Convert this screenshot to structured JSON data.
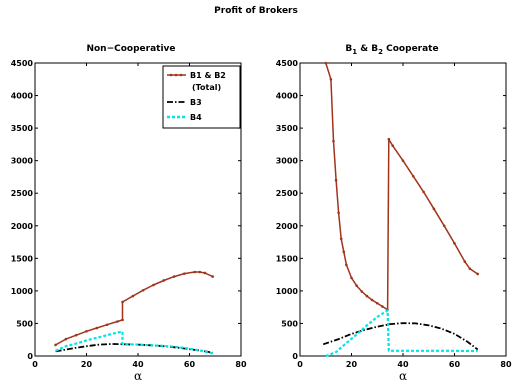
{
  "figure": {
    "suptitle": "Profit of Brokers"
  },
  "chart_data": [
    {
      "type": "line",
      "title": "Non−Cooperative",
      "xlabel": "α",
      "ylabel": "",
      "xlim": [
        0,
        80
      ],
      "ylim": [
        0,
        4500
      ],
      "xticks": [
        0,
        20,
        40,
        60,
        80
      ],
      "yticks": [
        0,
        500,
        1000,
        1500,
        2000,
        2500,
        3000,
        3500,
        4000,
        4500
      ],
      "legend": {
        "placement": "top-right",
        "entries": [
          "B1 & B2",
          "(Total)",
          "B3",
          "B4"
        ]
      },
      "series": [
        {
          "name": "B1 & B2 (Total)",
          "color": "#a0341c",
          "style": "solid-dotted-markers",
          "x": [
            8,
            12,
            16,
            20,
            24,
            28,
            32,
            34,
            34,
            38,
            42,
            46,
            50,
            54,
            58,
            62,
            64,
            66,
            69
          ],
          "y": [
            170,
            260,
            320,
            380,
            430,
            480,
            530,
            555,
            830,
            920,
            1010,
            1090,
            1160,
            1220,
            1265,
            1290,
            1290,
            1275,
            1220
          ]
        },
        {
          "name": "B3",
          "color": "#000000",
          "style": "dashdot",
          "x": [
            8,
            15,
            20,
            25,
            30,
            35,
            40,
            45,
            50,
            55,
            60,
            65,
            69
          ],
          "y": [
            70,
            120,
            150,
            175,
            185,
            180,
            175,
            165,
            150,
            130,
            105,
            80,
            50
          ]
        },
        {
          "name": "B4",
          "color": "#00e5e5",
          "style": "dotted",
          "x": [
            8,
            12,
            16,
            20,
            24,
            28,
            32,
            34,
            34,
            40,
            46,
            52,
            58,
            64,
            69
          ],
          "y": [
            80,
            150,
            190,
            240,
            280,
            320,
            360,
            375,
            185,
            175,
            165,
            150,
            125,
            85,
            40
          ]
        }
      ]
    },
    {
      "type": "line",
      "title_main": "B",
      "title_sub1": "1",
      "title_mid": " & B",
      "title_sub2": "2",
      "title_end": " Cooperate",
      "xlabel": "α",
      "ylabel": "",
      "xlim": [
        0,
        80
      ],
      "ylim": [
        0,
        4500
      ],
      "xticks": [
        0,
        20,
        40,
        60,
        80
      ],
      "yticks": [
        0,
        500,
        1000,
        1500,
        2000,
        2500,
        3000,
        3500,
        4000,
        4500
      ],
      "series": [
        {
          "name": "B1 & B2 (Total)",
          "color": "#a0341c",
          "style": "solid-dotted-markers",
          "x": [
            10,
            12,
            13,
            14,
            15,
            16,
            17,
            18,
            20,
            22,
            24,
            26,
            28,
            30,
            32,
            34,
            34.5,
            36,
            40,
            44,
            48,
            52,
            56,
            60,
            64,
            66,
            69
          ],
          "y": [
            4500,
            4250,
            3300,
            2700,
            2200,
            1800,
            1600,
            1400,
            1200,
            1080,
            990,
            920,
            860,
            810,
            760,
            710,
            3330,
            3230,
            3000,
            2760,
            2520,
            2260,
            2000,
            1730,
            1450,
            1340,
            1260
          ]
        },
        {
          "name": "B3",
          "color": "#000000",
          "style": "dashdot",
          "x": [
            9,
            15,
            20,
            25,
            30,
            35,
            40,
            45,
            50,
            55,
            60,
            65,
            69
          ],
          "y": [
            180,
            260,
            340,
            400,
            450,
            490,
            505,
            500,
            470,
            420,
            340,
            220,
            100
          ]
        },
        {
          "name": "B4",
          "color": "#00e5e5",
          "style": "dotted",
          "x": [
            10,
            14,
            18,
            22,
            26,
            30,
            34,
            34.5,
            40,
            50,
            60,
            69
          ],
          "y": [
            0,
            60,
            200,
            330,
            470,
            600,
            700,
            80,
            80,
            80,
            80,
            75
          ]
        }
      ]
    }
  ]
}
